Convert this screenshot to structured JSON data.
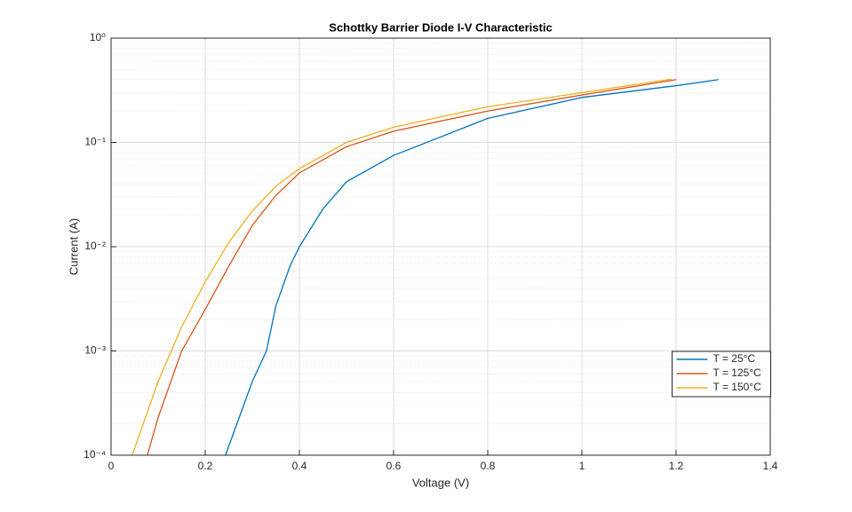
{
  "chart_data": {
    "type": "line",
    "title": "Schottky Barrier Diode I-V Characteristic",
    "x_label": "Voltage (V)",
    "y_label": "Current (A)",
    "xlim": [
      0,
      1.4
    ],
    "xticks": [
      0,
      0.2,
      0.4,
      0.6,
      0.8,
      1,
      1.2,
      1.4
    ],
    "ylim": [
      0.0001,
      1
    ],
    "y_scale": "log",
    "yticks": [
      {
        "value": 0.0001,
        "label": "10⁻⁴"
      },
      {
        "value": 0.001,
        "label": "10⁻³"
      },
      {
        "value": 0.01,
        "label": "10⁻²"
      },
      {
        "value": 0.1,
        "label": "10⁻¹"
      },
      {
        "value": 1,
        "label": "10⁰"
      }
    ],
    "grid": true,
    "minor_grid": true,
    "legend": "east",
    "series": [
      {
        "name": "T = 25°C",
        "color": "#0072bd",
        "x": [
          0.243,
          0.3,
          0.33,
          0.35,
          0.38,
          0.4,
          0.45,
          0.5,
          0.6,
          0.8,
          1.0,
          1.2,
          1.29
        ],
        "values": [
          0.0001,
          0.00051,
          0.001,
          0.0027,
          0.0065,
          0.01,
          0.023,
          0.042,
          0.075,
          0.17,
          0.27,
          0.35,
          0.4
        ]
      },
      {
        "name": "T = 125°C",
        "color": "#d95319",
        "x": [
          0.077,
          0.1,
          0.15,
          0.2,
          0.25,
          0.3,
          0.35,
          0.4,
          0.5,
          0.6,
          0.8,
          1.0,
          1.2
        ],
        "values": [
          0.0001,
          0.00023,
          0.001,
          0.0025,
          0.0065,
          0.016,
          0.031,
          0.051,
          0.091,
          0.128,
          0.2,
          0.285,
          0.4
        ]
      },
      {
        "name": "T = 150°C",
        "color": "#edb120",
        "x": [
          0.045,
          0.1,
          0.15,
          0.2,
          0.25,
          0.3,
          0.35,
          0.4,
          0.5,
          0.6,
          0.8,
          1.0,
          1.19
        ],
        "values": [
          0.0001,
          0.00051,
          0.0017,
          0.0046,
          0.011,
          0.022,
          0.038,
          0.056,
          0.1,
          0.14,
          0.22,
          0.3,
          0.405
        ]
      }
    ]
  }
}
